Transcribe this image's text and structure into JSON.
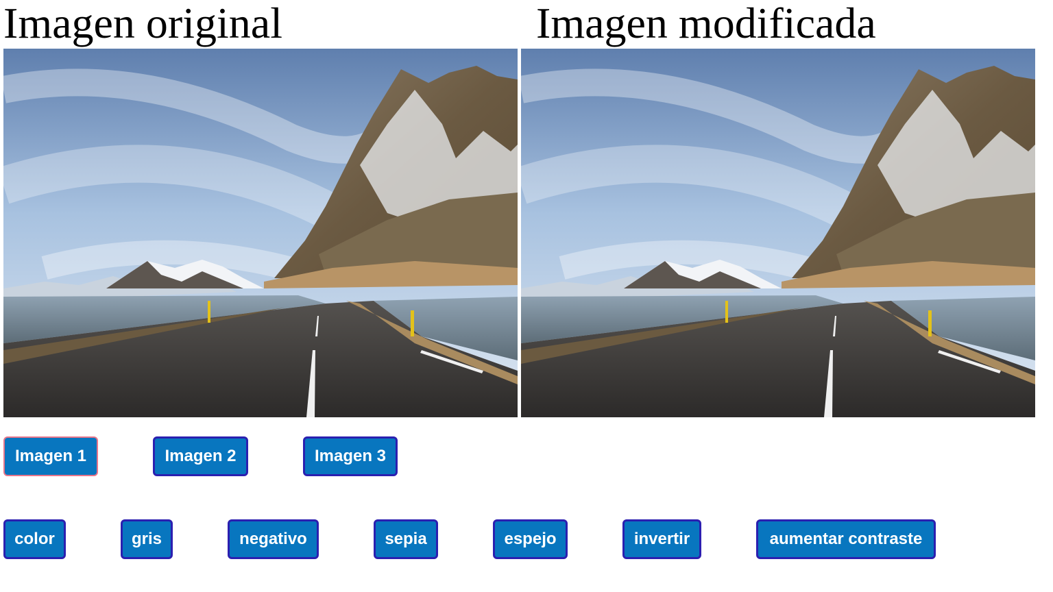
{
  "panels": {
    "original_title": "Imagen original",
    "modified_title": "Imagen modificada"
  },
  "image_buttons": [
    {
      "label": "Imagen 1",
      "selected": true
    },
    {
      "label": "Imagen 2",
      "selected": false
    },
    {
      "label": "Imagen 3",
      "selected": false
    }
  ],
  "filter_buttons": [
    {
      "label": "color"
    },
    {
      "label": "gris"
    },
    {
      "label": "negativo"
    },
    {
      "label": "sepia"
    },
    {
      "label": "espejo"
    },
    {
      "label": "invertir"
    },
    {
      "label": "aumentar contraste"
    }
  ],
  "colors": {
    "button_bg": "#0876bf",
    "button_border": "#2b1fb0",
    "button_text": "#ffffff",
    "selected_outline": "#e8758a"
  }
}
